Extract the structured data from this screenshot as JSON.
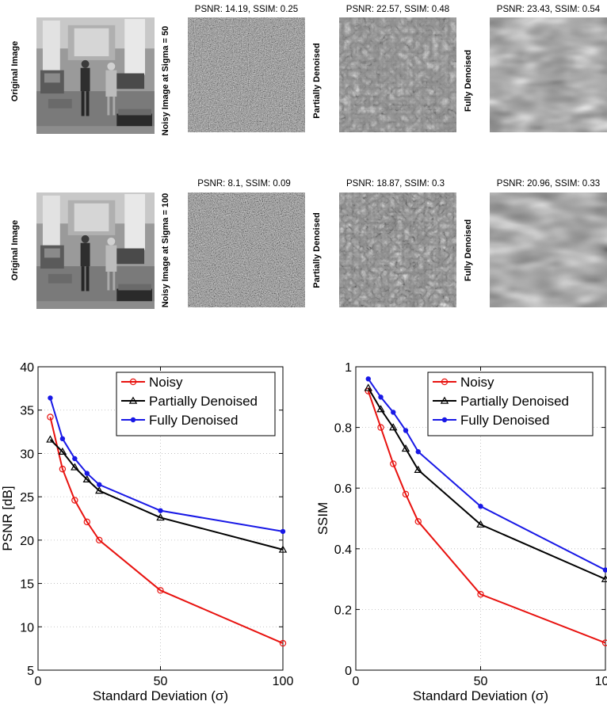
{
  "figure": {
    "row1": {
      "original_label": "Original Image",
      "noisy_label": "Noisy Image at Sigma = 50",
      "noisy_title": "PSNR: 14.19, SSIM: 0.25",
      "partial_label": "Partially Denoised",
      "partial_title": "PSNR: 22.57, SSIM: 0.48",
      "full_label": "Fully Denoised",
      "full_title": "PSNR: 23.43, SSIM: 0.54"
    },
    "row2": {
      "original_label": "Original Image",
      "noisy_label": "Noisy Image at Sigma = 100",
      "noisy_title": "PSNR: 8.1, SSIM: 0.09",
      "partial_label": "Partially Denoised",
      "partial_title": "PSNR: 18.87, SSIM: 0.3",
      "full_label": "Fully Denoised",
      "full_title": "PSNR: 20.96, SSIM: 0.33"
    }
  },
  "chart_data": [
    {
      "type": "line",
      "xlabel": "Standard Deviation (σ)",
      "ylabel": "PSNR [dB]",
      "xlim": [
        0,
        100
      ],
      "ylim": [
        5,
        40
      ],
      "xticks": [
        0,
        50,
        100
      ],
      "yticks": [
        5,
        10,
        15,
        20,
        25,
        30,
        35,
        40
      ],
      "grid": true,
      "legend_position": "top-right",
      "x": [
        5,
        10,
        15,
        20,
        25,
        50,
        100
      ],
      "series": [
        {
          "name": "Noisy",
          "color": "#e8120f",
          "marker": "circle",
          "values": [
            34.2,
            28.2,
            24.6,
            22.1,
            20.0,
            14.2,
            8.1
          ]
        },
        {
          "name": "Partially Denoised",
          "color": "#000000",
          "marker": "triangle",
          "values": [
            31.6,
            30.2,
            28.4,
            27.0,
            25.7,
            22.6,
            18.9
          ]
        },
        {
          "name": "Fully Denoised",
          "color": "#1818e6",
          "marker": "dot",
          "values": [
            36.4,
            31.7,
            29.4,
            27.7,
            26.4,
            23.4,
            21.0
          ]
        }
      ]
    },
    {
      "type": "line",
      "xlabel": "Standard Deviation (σ)",
      "ylabel": "SSIM",
      "xlim": [
        0,
        100
      ],
      "ylim": [
        0,
        1
      ],
      "xticks": [
        0,
        50,
        100
      ],
      "yticks": [
        0,
        0.2,
        0.4,
        0.6,
        0.8,
        1
      ],
      "grid": true,
      "legend_position": "top-right",
      "x": [
        5,
        10,
        15,
        20,
        25,
        50,
        100
      ],
      "series": [
        {
          "name": "Noisy",
          "color": "#e8120f",
          "marker": "circle",
          "values": [
            0.92,
            0.8,
            0.68,
            0.58,
            0.49,
            0.25,
            0.09
          ]
        },
        {
          "name": "Partially Denoised",
          "color": "#000000",
          "marker": "triangle",
          "values": [
            0.93,
            0.86,
            0.8,
            0.73,
            0.66,
            0.48,
            0.3
          ]
        },
        {
          "name": "Fully Denoised",
          "color": "#1818e6",
          "marker": "dot",
          "values": [
            0.96,
            0.9,
            0.85,
            0.79,
            0.72,
            0.54,
            0.33
          ]
        }
      ]
    }
  ]
}
